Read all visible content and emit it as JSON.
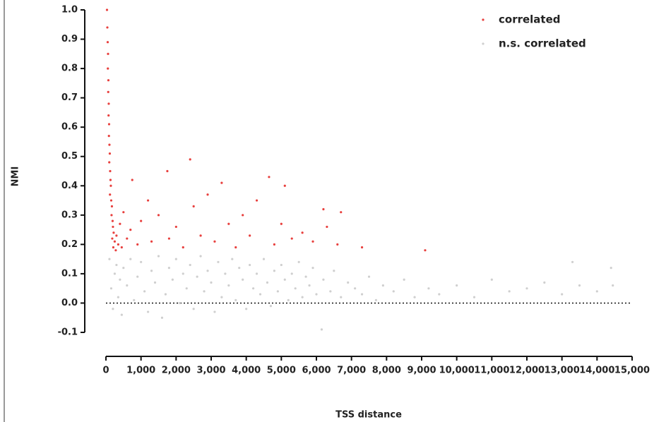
{
  "chart_data": {
    "type": "scatter",
    "xlabel": "TSS distance",
    "ylabel": "NMI",
    "xlim": [
      0,
      15000
    ],
    "ylim": [
      -0.1,
      1.0
    ],
    "xticks": [
      0,
      {
        "value": 1000,
        "label": "1,000"
      },
      {
        "value": 2000,
        "label": "2,000"
      },
      {
        "value": 3000,
        "label": "3,000"
      },
      {
        "value": 4000,
        "label": "4,000"
      },
      {
        "value": 5000,
        "label": "5,000"
      },
      {
        "value": 6000,
        "label": "6,000"
      },
      {
        "value": 7000,
        "label": "7,000"
      },
      {
        "value": 8000,
        "label": "8,000"
      },
      {
        "value": 9000,
        "label": "9,000"
      },
      {
        "value": 10000,
        "label": "10,000"
      },
      {
        "value": 11000,
        "label": "11,000"
      },
      {
        "value": 12000,
        "label": "12,000"
      },
      {
        "value": 13000,
        "label": "13,000"
      },
      {
        "value": 14000,
        "label": "14,000"
      },
      {
        "value": 15000,
        "label": "15,000"
      }
    ],
    "yticks": [
      {
        "value": 1.0,
        "label": "1.0"
      },
      0.9,
      0.8,
      0.7,
      0.6,
      0.5,
      0.4,
      0.3,
      0.2,
      0.1,
      {
        "value": 0.0,
        "label": "0.0"
      },
      -0.1
    ],
    "reference_line": 0,
    "legend": "upper right",
    "series": [
      {
        "name": "n.s. correlated",
        "color": "#cfcfcf",
        "x": [
          100,
          150,
          200,
          250,
          300,
          350,
          400,
          450,
          500,
          600,
          700,
          800,
          900,
          1000,
          1100,
          1200,
          1300,
          1400,
          1500,
          1600,
          1700,
          1800,
          1900,
          2000,
          2100,
          2200,
          2300,
          2400,
          2500,
          2600,
          2700,
          2800,
          2900,
          3000,
          3100,
          3200,
          3300,
          3400,
          3500,
          3600,
          3700,
          3800,
          3900,
          4000,
          4100,
          4200,
          4300,
          4400,
          4500,
          4600,
          4700,
          4800,
          4900,
          5000,
          5100,
          5200,
          5300,
          5400,
          5500,
          5600,
          5700,
          5800,
          5900,
          6000,
          6150,
          6200,
          6400,
          6500,
          6700,
          6900,
          7100,
          7300,
          7500,
          7700,
          7900,
          8200,
          8500,
          8800,
          9200,
          9500,
          10000,
          10500,
          11000,
          11500,
          12000,
          12500,
          13000,
          13300,
          13500,
          14000,
          14400,
          14450
        ],
        "values": [
          0.15,
          0.05,
          -0.02,
          0.1,
          0.13,
          0.02,
          0.08,
          -0.04,
          0.12,
          0.06,
          0.15,
          0.01,
          0.09,
          0.14,
          0.04,
          -0.03,
          0.11,
          0.07,
          0.16,
          -0.05,
          0.03,
          0.12,
          0.08,
          0.15,
          0.0,
          0.1,
          0.05,
          0.13,
          -0.02,
          0.09,
          0.16,
          0.04,
          0.11,
          0.07,
          -0.03,
          0.14,
          0.02,
          0.1,
          0.06,
          0.15,
          0.01,
          0.12,
          0.08,
          -0.02,
          0.13,
          0.05,
          0.1,
          0.03,
          0.15,
          0.07,
          -0.01,
          0.11,
          0.04,
          0.13,
          0.08,
          0.01,
          0.1,
          0.05,
          0.14,
          0.02,
          0.09,
          0.06,
          0.12,
          0.03,
          -0.09,
          0.08,
          0.04,
          0.11,
          0.02,
          0.07,
          0.05,
          0.03,
          0.09,
          0.01,
          0.06,
          0.04,
          0.08,
          0.02,
          0.05,
          0.03,
          0.06,
          0.02,
          0.08,
          0.04,
          0.05,
          0.07,
          0.03,
          0.14,
          0.06,
          0.04,
          0.12,
          0.06
        ]
      },
      {
        "name": "correlated",
        "color": "#e8403e",
        "x": [
          30,
          40,
          50,
          60,
          55,
          70,
          65,
          80,
          75,
          90,
          85,
          100,
          110,
          95,
          120,
          130,
          140,
          115,
          150,
          170,
          160,
          190,
          200,
          220,
          180,
          250,
          210,
          280,
          300,
          350,
          400,
          450,
          500,
          600,
          700,
          750,
          900,
          1000,
          1200,
          1300,
          1500,
          1750,
          1800,
          2000,
          2200,
          2400,
          2500,
          2700,
          2900,
          3100,
          3300,
          3500,
          3700,
          3900,
          4100,
          4300,
          4650,
          4800,
          5000,
          5100,
          5300,
          5600,
          5900,
          6200,
          6300,
          6700,
          6600,
          7300,
          9100
        ],
        "values": [
          1.0,
          0.94,
          0.89,
          0.85,
          0.8,
          0.76,
          0.72,
          0.68,
          0.64,
          0.61,
          0.57,
          0.54,
          0.51,
          0.48,
          0.45,
          0.42,
          0.4,
          0.37,
          0.35,
          0.33,
          0.3,
          0.28,
          0.26,
          0.24,
          0.22,
          0.21,
          0.19,
          0.18,
          0.23,
          0.2,
          0.27,
          0.19,
          0.31,
          0.22,
          0.25,
          0.42,
          0.2,
          0.28,
          0.35,
          0.21,
          0.3,
          0.45,
          0.22,
          0.26,
          0.19,
          0.49,
          0.33,
          0.23,
          0.37,
          0.21,
          0.41,
          0.27,
          0.19,
          0.3,
          0.23,
          0.35,
          0.43,
          0.2,
          0.27,
          0.4,
          0.22,
          0.24,
          0.21,
          0.32,
          0.26,
          0.31,
          0.2,
          0.19,
          0.18
        ]
      }
    ]
  }
}
